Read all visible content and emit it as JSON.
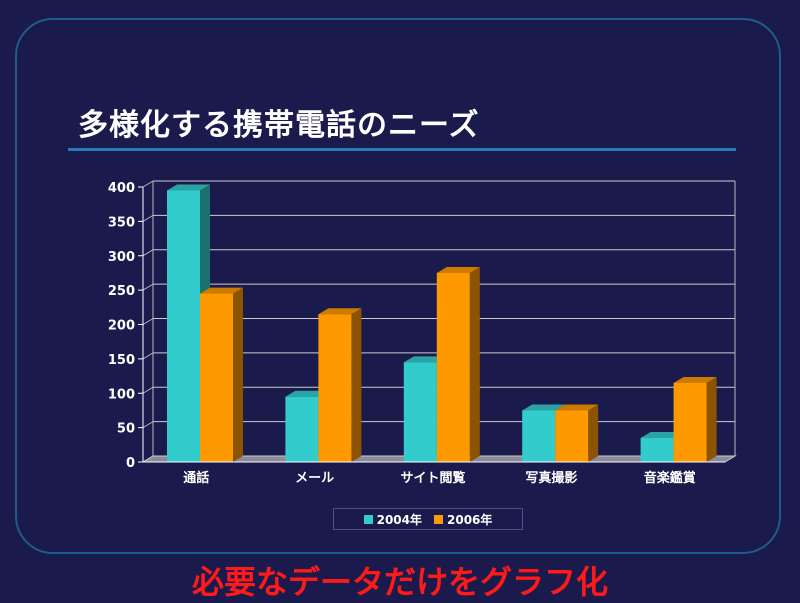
{
  "title": "多様化する携帯電話のニーズ",
  "caption": "必要なデータだけをグラフ化",
  "colors": {
    "background": "#1a1a4d",
    "series_2004": "#33cccc",
    "series_2006": "#ff9900",
    "caption": "#ff1a1a"
  },
  "chart_data": {
    "type": "bar",
    "categories": [
      "通話",
      "メール",
      "サイト閲覧",
      "写真撮影",
      "音楽鑑賞"
    ],
    "series": [
      {
        "name": "2004年",
        "values": [
          395,
          95,
          145,
          75,
          35
        ]
      },
      {
        "name": "2006年",
        "values": [
          245,
          215,
          275,
          75,
          115
        ]
      }
    ],
    "yticks": [
      "0",
      "50",
      "100",
      "150",
      "200",
      "250",
      "300",
      "350",
      "400"
    ],
    "ylim": [
      0,
      400
    ],
    "grid": true,
    "legend_position": "bottom"
  }
}
